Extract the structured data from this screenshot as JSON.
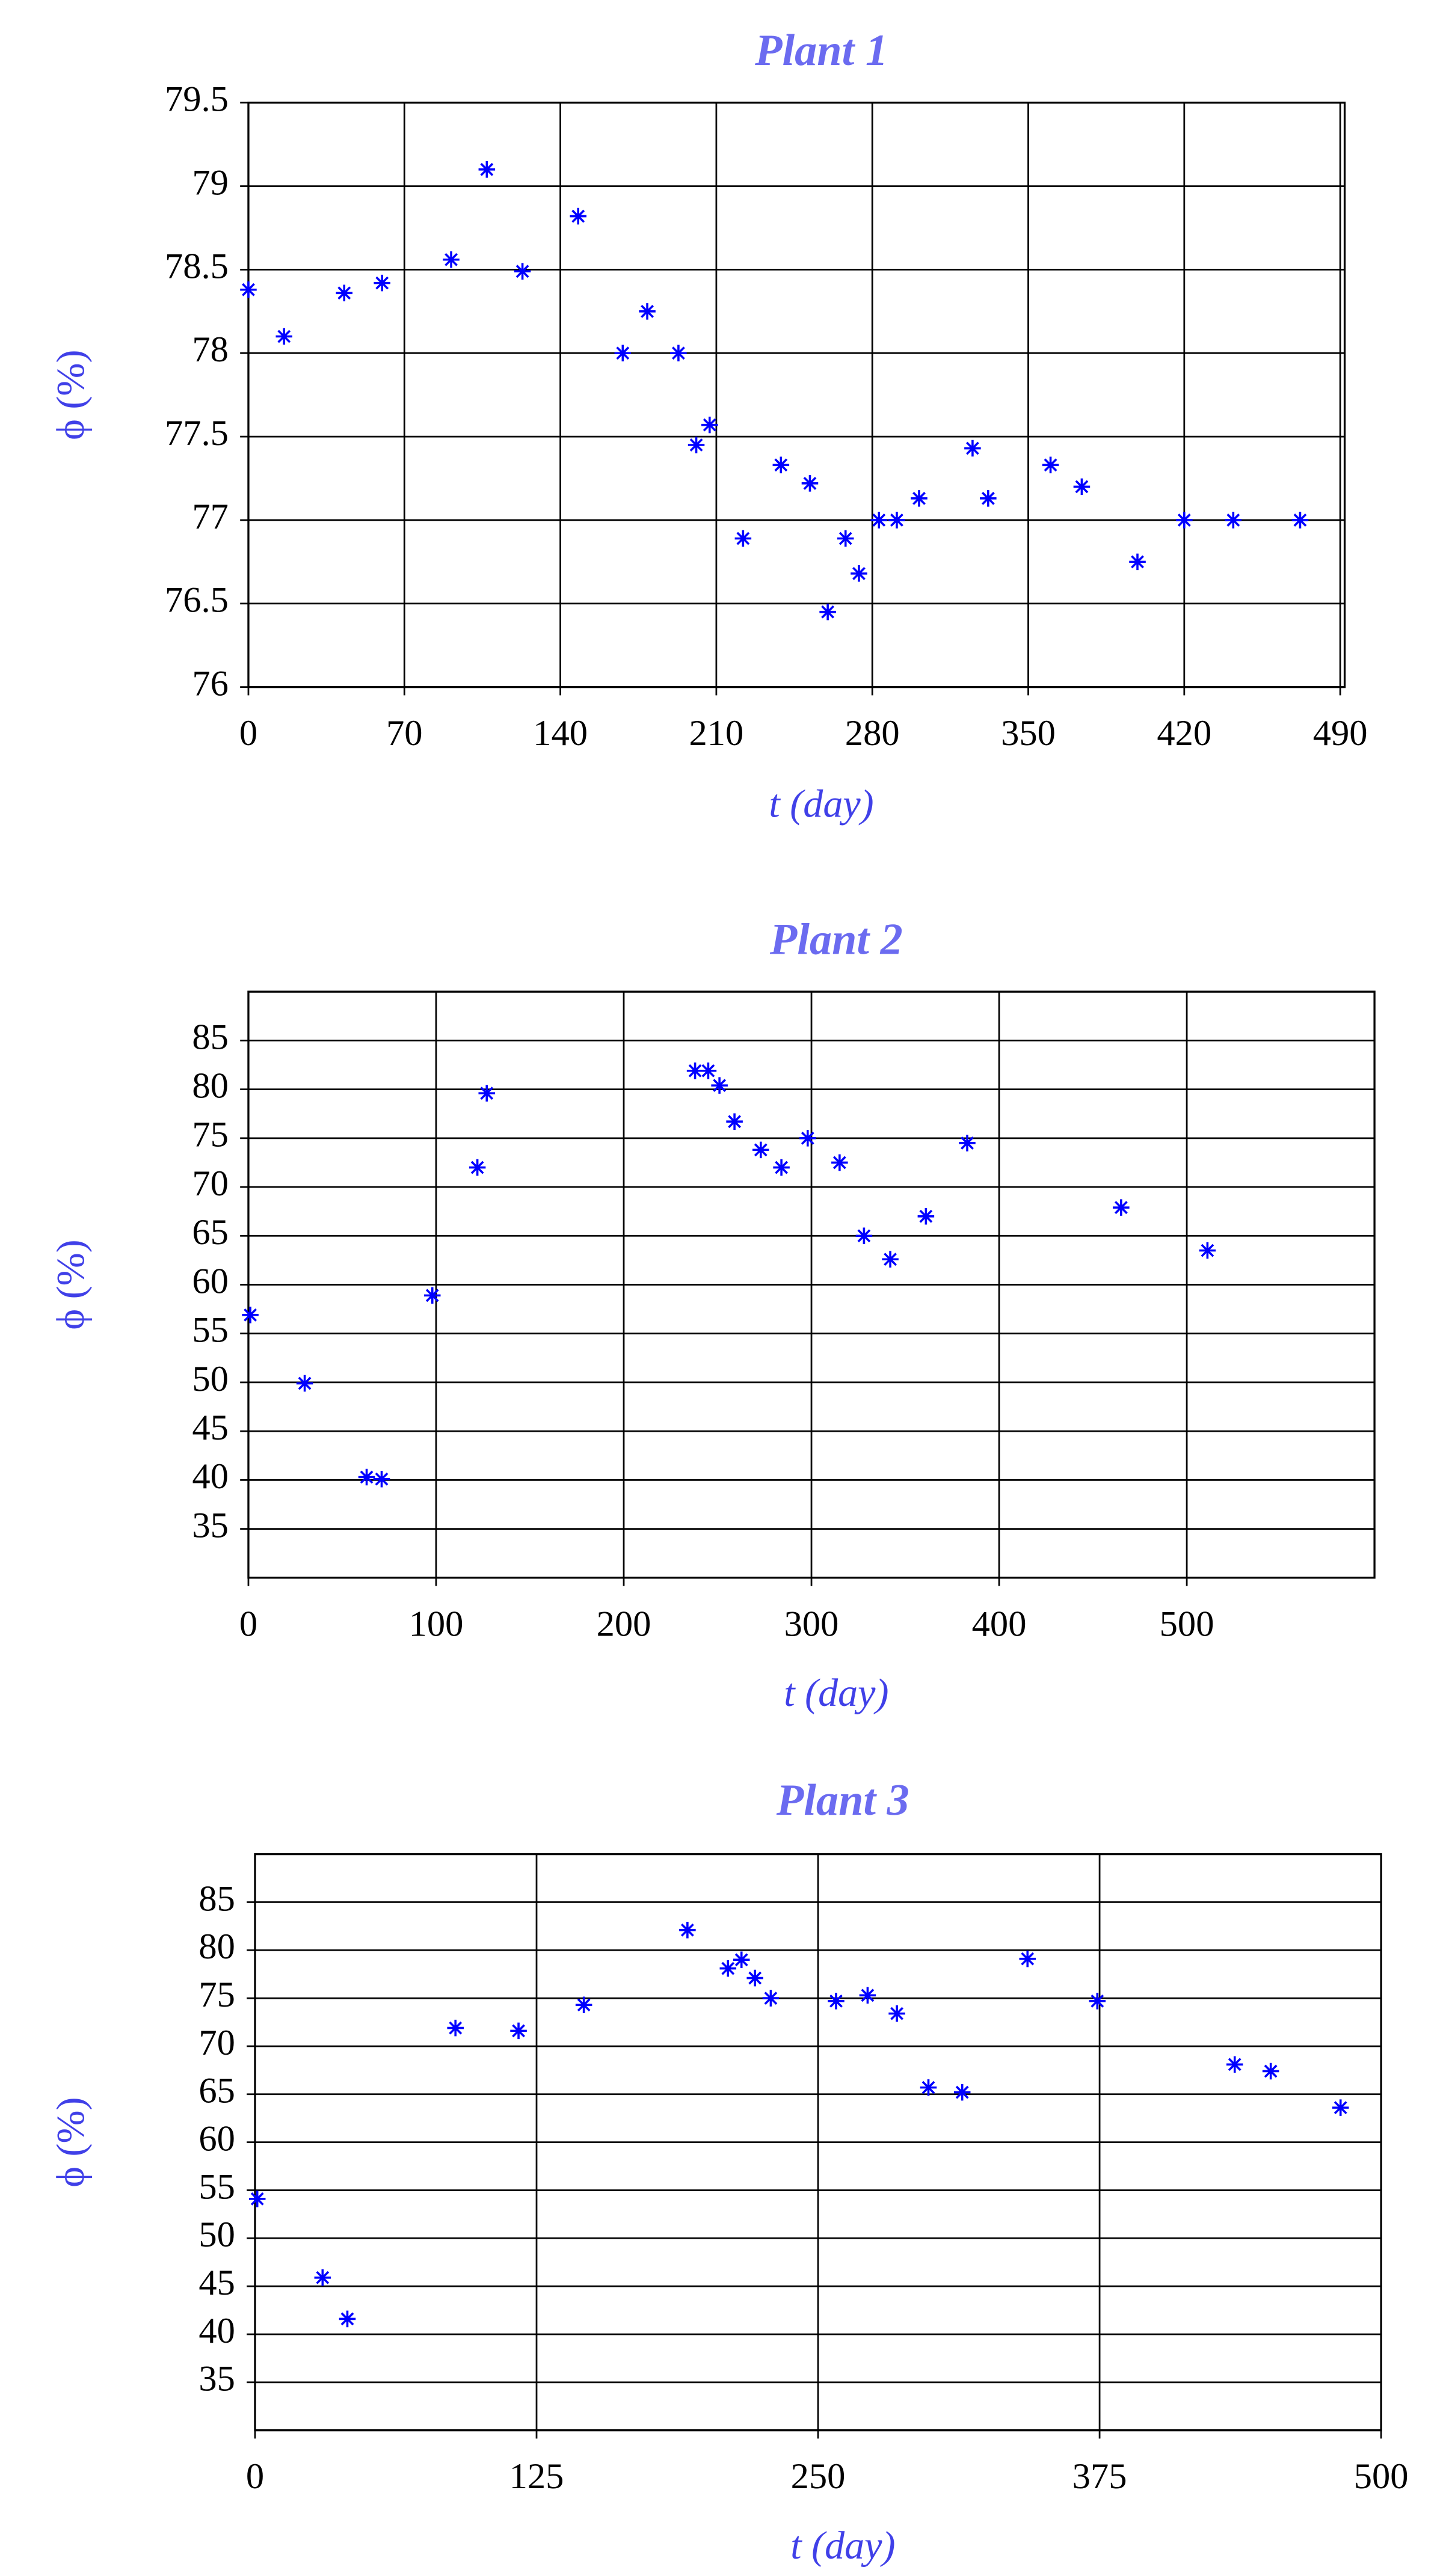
{
  "chart_data": [
    {
      "type": "scatter",
      "title": "Plant 1",
      "x_label": "t (day)",
      "y_label": "ϕ (%)",
      "color": "#0000ff",
      "grid": true,
      "xlim": [
        0,
        492
      ],
      "xticks": [
        0,
        70,
        140,
        210,
        280,
        350,
        420,
        490
      ],
      "ylim": [
        76,
        79.5
      ],
      "yticks": [
        76,
        76.5,
        77,
        77.5,
        78,
        78.5,
        79,
        79.5
      ],
      "x": [
        0,
        16,
        43,
        60,
        91,
        107,
        123,
        148,
        168,
        179,
        193,
        201,
        207,
        222,
        239,
        252,
        260,
        268,
        274,
        283,
        291,
        301,
        325,
        332,
        360,
        374,
        399,
        420,
        442,
        472
      ],
      "values": [
        78.38,
        78.1,
        78.36,
        78.42,
        78.56,
        79.1,
        78.49,
        78.82,
        78.0,
        78.25,
        78.0,
        77.45,
        77.57,
        76.89,
        77.33,
        77.22,
        76.45,
        76.89,
        76.68,
        77.0,
        77.0,
        77.13,
        77.43,
        77.13,
        77.33,
        77.2,
        76.75,
        77.0,
        77.0,
        77.0
      ]
    },
    {
      "type": "scatter",
      "title": "Plant 2",
      "x_label": "t (day)",
      "y_label": "ϕ (%)",
      "color": "#0000ff",
      "grid": true,
      "xlim": [
        0,
        600
      ],
      "xticks": [
        0,
        100,
        200,
        300,
        400,
        500
      ],
      "ylim": [
        30,
        90
      ],
      "yticks": [
        35,
        40,
        45,
        50,
        55,
        60,
        65,
        70,
        75,
        80,
        85
      ],
      "x": [
        1,
        30,
        63,
        71,
        98,
        122,
        127,
        238,
        245,
        251,
        259,
        273,
        284,
        298,
        315,
        328,
        342,
        361,
        383,
        465,
        511
      ],
      "values": [
        56.9,
        49.9,
        40.3,
        40.1,
        58.9,
        72.0,
        79.6,
        81.9,
        81.9,
        80.4,
        76.7,
        73.8,
        72.0,
        75.0,
        72.5,
        65.0,
        62.6,
        67.0,
        74.5,
        67.9,
        63.5
      ]
    },
    {
      "type": "scatter",
      "title": "Plant 3",
      "x_label": "t (day)",
      "y_label": "ϕ (%)",
      "color": "#0000ff",
      "grid": true,
      "xlim": [
        0,
        500
      ],
      "xticks": [
        0,
        125,
        250,
        375,
        500
      ],
      "ylim": [
        30,
        90
      ],
      "yticks": [
        35,
        40,
        45,
        50,
        55,
        60,
        65,
        70,
        75,
        80,
        85
      ],
      "x": [
        1,
        30,
        41,
        89,
        117,
        146,
        192,
        210,
        216,
        222,
        229,
        258,
        272,
        285,
        299,
        314,
        343,
        374,
        435,
        451,
        482
      ],
      "values": [
        54.1,
        45.9,
        41.6,
        71.9,
        71.6,
        74.3,
        82.1,
        78.1,
        79.0,
        77.1,
        75.0,
        74.7,
        75.3,
        73.4,
        65.7,
        65.2,
        79.1,
        74.7,
        68.1,
        67.4,
        63.6
      ]
    }
  ]
}
